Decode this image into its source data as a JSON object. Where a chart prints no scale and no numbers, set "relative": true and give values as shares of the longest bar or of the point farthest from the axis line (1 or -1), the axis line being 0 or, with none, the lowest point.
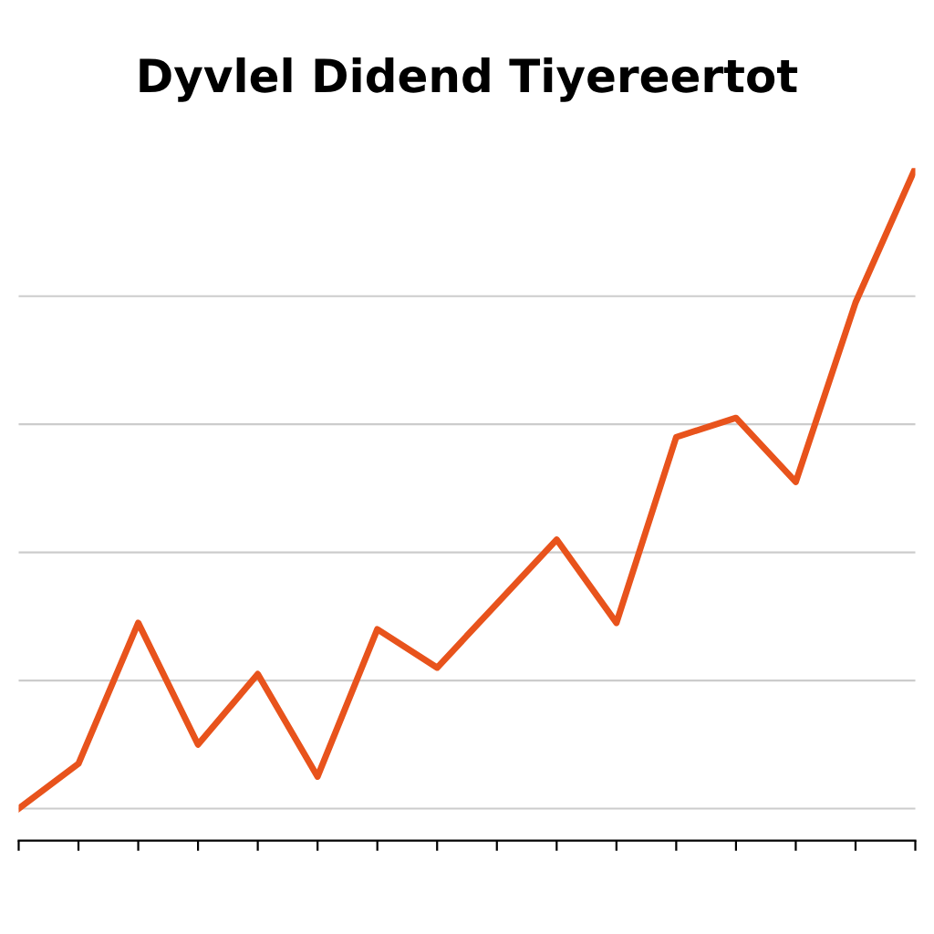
{
  "chart_data": {
    "type": "line",
    "title": "Dyvlel Didend Tiyereertot",
    "relative": true,
    "categories": [
      null,
      null,
      null,
      null,
      null,
      null,
      null,
      null,
      null,
      null,
      null,
      null,
      null,
      null,
      null,
      null
    ],
    "series": [
      {
        "color": "#e8531c",
        "values": [
          0,
          0.07,
          0.29,
          0.1,
          0.21,
          0.05,
          0.28,
          0.22,
          0.32,
          0.42,
          0.29,
          0.58,
          0.61,
          0.51,
          0.79,
          1.0
        ]
      }
    ],
    "grid": "y",
    "marker": "none",
    "line_style": "solid"
  }
}
